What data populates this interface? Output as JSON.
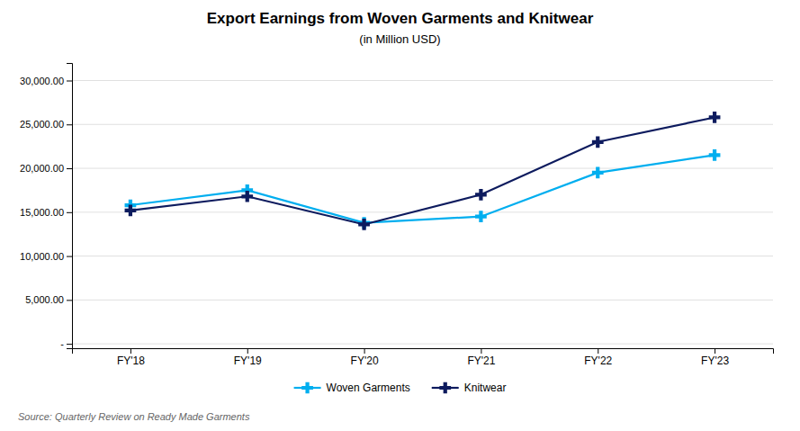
{
  "chart_data": {
    "type": "line",
    "title": "Export Earnings from Woven Garments and Knitwear",
    "subtitle": "(in Million USD)",
    "source": "Source: Quarterly Review on Ready Made Garments",
    "categories": [
      "FY'18",
      "FY'19",
      "FY'20",
      "FY'21",
      "FY'22",
      "FY'23"
    ],
    "series": [
      {
        "name": "Woven Garments",
        "color": "#00AEEF",
        "values": [
          15800,
          17500,
          13800,
          14500,
          19500,
          21500
        ]
      },
      {
        "name": "Knitwear",
        "color": "#0D1B5E",
        "values": [
          15200,
          16800,
          13600,
          17000,
          23000,
          25800
        ]
      }
    ],
    "ylim": [
      -500,
      32000
    ],
    "yticks": [
      {
        "value": 0,
        "label": "-"
      },
      {
        "value": 5000,
        "label": "5,000.00"
      },
      {
        "value": 10000,
        "label": "10,000.00"
      },
      {
        "value": 15000,
        "label": "15,000.00"
      },
      {
        "value": 20000,
        "label": "20,000.00"
      },
      {
        "value": 25000,
        "label": "25,000.00"
      },
      {
        "value": 30000,
        "label": "30,000.00"
      }
    ],
    "grid": true,
    "legend": "bottom",
    "marker": "plus"
  }
}
